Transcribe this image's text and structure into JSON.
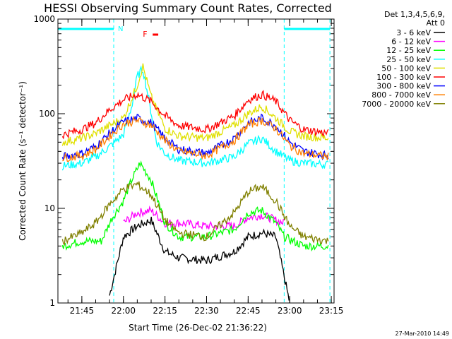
{
  "chart_data": {
    "type": "line",
    "title": "HESSI Observing Summary Count Rates, Corrected",
    "xlabel": "Start Time (26-Dec-02 21:36:22)",
    "ylabel": "Corrected Count Rate (s⁻¹ detector⁻¹)",
    "y_scale": "log",
    "ylim": [
      1,
      1000
    ],
    "xlim": [
      "21:36:22",
      "23:16:00"
    ],
    "x_tick_labels": [
      "21:45",
      "22:00",
      "22:15",
      "22:30",
      "22:45",
      "23:00",
      "23:15"
    ],
    "y_tick_labels": [
      "1",
      "10",
      "100",
      "1000"
    ],
    "legend_header": [
      "Det 1,3,4,5,6,9,",
      "Att 0"
    ],
    "legend_position": "right",
    "footer_timestamp": "27-Mar-2010 14:49",
    "annotations": {
      "night_label": "N",
      "flare_label": "F",
      "night_intervals": [
        [
          "21:36:22",
          "21:56:30"
        ],
        [
          "22:58:00",
          "23:14:30"
        ]
      ],
      "flare_interval": [
        "22:07:00",
        "22:09:00"
      ]
    },
    "series": [
      {
        "name": "3 - 6 keV",
        "color": "#000000",
        "x": [
          "21:55",
          "22:00",
          "22:05",
          "22:10",
          "22:15",
          "22:20",
          "22:30",
          "22:40",
          "22:45",
          "22:50",
          "22:55",
          "23:00"
        ],
        "y": [
          1.2,
          5.0,
          6.5,
          7.5,
          3.5,
          3.0,
          2.8,
          3.5,
          5.0,
          5.5,
          5.0,
          1.0
        ]
      },
      {
        "name": "6 - 12 keV",
        "color": "#ff00ff",
        "x": [
          "22:00",
          "22:05",
          "22:10",
          "22:15",
          "22:20",
          "22:30",
          "22:40",
          "22:45",
          "22:50",
          "22:55",
          "22:58"
        ],
        "y": [
          7.0,
          9.0,
          9.5,
          7.0,
          7.0,
          6.5,
          6.5,
          8.0,
          8.5,
          7.5,
          7.0
        ]
      },
      {
        "name": "12 - 25 keV",
        "color": "#00ff00",
        "x": [
          "21:38",
          "21:45",
          "21:52",
          "21:56",
          "22:00",
          "22:03",
          "22:06",
          "22:10",
          "22:15",
          "22:20",
          "22:30",
          "22:40",
          "22:45",
          "22:50",
          "22:55",
          "22:58",
          "23:05",
          "23:14"
        ],
        "y": [
          4.0,
          4.5,
          4.5,
          8.0,
          12.0,
          20.0,
          30.0,
          20.0,
          7.0,
          5.0,
          5.0,
          6.0,
          9.0,
          9.5,
          7.0,
          5.0,
          4.0,
          4.0
        ]
      },
      {
        "name": "25 - 50 keV",
        "color": "#00ffff",
        "x": [
          "21:38",
          "21:45",
          "21:50",
          "21:55",
          "22:00",
          "22:03",
          "22:05",
          "22:07",
          "22:09",
          "22:12",
          "22:15",
          "22:20",
          "22:30",
          "22:40",
          "22:45",
          "22:50",
          "22:55",
          "23:00",
          "23:05",
          "23:14"
        ],
        "y": [
          28,
          30,
          35,
          45,
          60,
          120,
          250,
          300,
          150,
          50,
          38,
          32,
          30,
          35,
          48,
          55,
          40,
          32,
          30,
          29
        ]
      },
      {
        "name": "50 - 100 keV",
        "color": "#e0e000",
        "x": [
          "21:38",
          "21:45",
          "21:50",
          "21:55",
          "22:00",
          "22:05",
          "22:07",
          "22:10",
          "22:15",
          "22:20",
          "22:30",
          "22:40",
          "22:45",
          "22:50",
          "22:55",
          "23:00",
          "23:05",
          "23:14"
        ],
        "y": [
          50,
          55,
          62,
          75,
          90,
          200,
          320,
          150,
          70,
          58,
          55,
          75,
          100,
          120,
          90,
          65,
          58,
          55
        ]
      },
      {
        "name": "100 - 300 keV",
        "color": "#ff0000",
        "x": [
          "21:38",
          "21:45",
          "21:50",
          "21:55",
          "22:00",
          "22:05",
          "22:10",
          "22:15",
          "22:20",
          "22:30",
          "22:40",
          "22:45",
          "22:50",
          "22:55",
          "23:00",
          "23:05",
          "23:14"
        ],
        "y": [
          60,
          68,
          80,
          110,
          140,
          160,
          135,
          95,
          75,
          68,
          95,
          140,
          160,
          135,
          85,
          68,
          62
        ]
      },
      {
        "name": "300 - 800 keV",
        "color": "#0000ff",
        "x": [
          "21:38",
          "21:45",
          "21:50",
          "21:55",
          "22:00",
          "22:05",
          "22:10",
          "22:15",
          "22:20",
          "22:30",
          "22:40",
          "22:45",
          "22:50",
          "22:55",
          "23:00",
          "23:05",
          "23:14"
        ],
        "y": [
          35,
          38,
          45,
          62,
          82,
          90,
          80,
          55,
          42,
          38,
          55,
          80,
          90,
          75,
          50,
          40,
          36
        ]
      },
      {
        "name": "800 - 7000 keV",
        "color": "#ff8000",
        "x": [
          "21:38",
          "21:45",
          "21:50",
          "21:55",
          "22:00",
          "22:05",
          "22:10",
          "22:15",
          "22:20",
          "22:30",
          "22:40",
          "22:45",
          "22:50",
          "22:55",
          "23:00",
          "23:05",
          "23:14"
        ],
        "y": [
          34,
          36,
          42,
          58,
          78,
          85,
          76,
          52,
          40,
          36,
          52,
          76,
          85,
          70,
          46,
          38,
          35
        ]
      },
      {
        "name": "7000 - 20000 keV",
        "color": "#808000",
        "x": [
          "21:38",
          "21:45",
          "21:50",
          "21:55",
          "22:00",
          "22:05",
          "22:10",
          "22:15",
          "22:20",
          "22:30",
          "22:40",
          "22:45",
          "22:50",
          "22:55",
          "23:00",
          "23:05",
          "23:14"
        ],
        "y": [
          4.5,
          5.5,
          7.0,
          11.0,
          16.0,
          18.0,
          14.0,
          7.5,
          5.5,
          5.0,
          9.0,
          15.0,
          17.0,
          12.0,
          6.5,
          5.0,
          4.5
        ]
      }
    ]
  }
}
